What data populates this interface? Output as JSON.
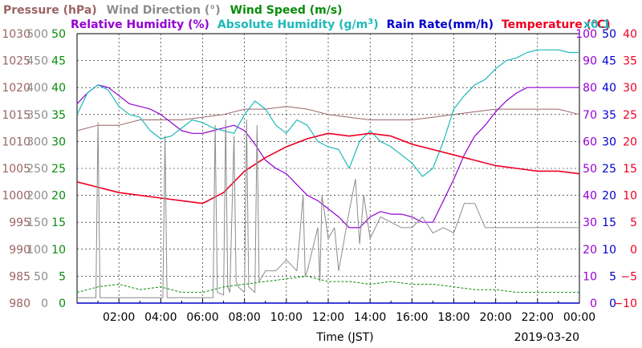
{
  "chart_data": {
    "type": "line",
    "date_label": "2019-03-20",
    "xlabel": "Time (JST)",
    "x_range_hours": [
      0,
      24
    ],
    "x_ticks": [
      "02:00",
      "04:00",
      "06:00",
      "08:00",
      "10:00",
      "12:00",
      "14:00",
      "16:00",
      "18:00",
      "20:00",
      "22:00",
      "00:00"
    ],
    "grid": true,
    "header_row1": [
      {
        "text": "Pressure (hPa)",
        "color": "#9b6464"
      },
      {
        "text": "Wind Direction (°)",
        "color": "#8c8c8c"
      },
      {
        "text": "Wind Speed (m/s)",
        "color": "#0a8c0a"
      }
    ],
    "header_row2": [
      {
        "text": "Relative Humidity (%)",
        "color": "#9400d3"
      },
      {
        "text": "Absolute Humidity (g/m",
        "color": "#1eb9b9",
        "sup": "3"
      },
      {
        "text": "Rain Rate(mm/h)",
        "color": "#0000cc"
      },
      {
        "text": "Temperature (°C)",
        "color": "#ee0022"
      }
    ],
    "abs_hum_scale_note": "x0.1",
    "axes": {
      "pressure": {
        "color": "#9b6464",
        "ticks": [
          "980",
          "985",
          "990",
          "995",
          "1000",
          "1005",
          "1010",
          "1015",
          "1020",
          "1025",
          "1030"
        ]
      },
      "wind_direction": {
        "color": "#8c8c8c",
        "ticks": [
          "0",
          "50",
          "100",
          "150",
          "200",
          "250",
          "300",
          "350",
          "400",
          "450",
          "500"
        ]
      },
      "wind_speed": {
        "color": "#0a8c0a",
        "ticks": [
          "0",
          "5",
          "10",
          "15",
          "20",
          "25",
          "30",
          "35",
          "40",
          "45",
          "50"
        ]
      },
      "relative_humidity": {
        "color": "#9400d3",
        "ticks": [
          "0",
          "10",
          "20",
          "30",
          "40",
          "50",
          "60",
          "70",
          "80",
          "90",
          "100"
        ]
      },
      "rain_rate": {
        "color": "#0000cc",
        "ticks": [
          "0",
          "5",
          "10",
          "15",
          "20",
          "25",
          "30",
          "35",
          "40",
          "45",
          "50"
        ]
      },
      "temperature": {
        "color": "#ee0022",
        "ticks": [
          "−10",
          "−5",
          "0",
          "5",
          "10",
          "15",
          "20",
          "25",
          "30",
          "35",
          "40"
        ]
      }
    },
    "series": [
      {
        "name": "Pressure (hPa)",
        "color": "#9b6464",
        "y_range": [
          980,
          1030
        ],
        "x": [
          0,
          1,
          2,
          3,
          4,
          5,
          6,
          7,
          8,
          9,
          10,
          11,
          12,
          13,
          14,
          15,
          16,
          17,
          18,
          19,
          20,
          21,
          22,
          23,
          24
        ],
        "y": [
          1012,
          1013,
          1013,
          1014,
          1014,
          1014,
          1014.5,
          1015,
          1016,
          1016,
          1016.5,
          1016,
          1015,
          1014.5,
          1014,
          1014,
          1014,
          1014.5,
          1015,
          1015.5,
          1016,
          1016,
          1016,
          1016,
          1015
        ]
      },
      {
        "name": "Relative Humidity (%)",
        "color": "#9400d3",
        "y_range": [
          0,
          100
        ],
        "x": [
          0,
          0.5,
          1,
          1.5,
          2,
          2.5,
          3,
          3.5,
          4,
          4.5,
          5,
          5.5,
          6,
          6.5,
          7,
          7.5,
          8,
          8.5,
          9,
          9.5,
          10,
          10.5,
          11,
          11.5,
          12,
          12.5,
          13,
          13.5,
          14,
          14.5,
          15,
          15.5,
          16,
          16.5,
          17,
          17.5,
          18,
          18.5,
          19,
          19.5,
          20,
          20.5,
          21,
          21.5,
          22,
          22.5,
          23,
          23.5,
          24
        ],
        "y": [
          74,
          78,
          81,
          80,
          77,
          74,
          73,
          72,
          70,
          67,
          64,
          63,
          63,
          64,
          65,
          66,
          64,
          59,
          53,
          50,
          48,
          44,
          40,
          38,
          35,
          32,
          28,
          28,
          32,
          34,
          33,
          33,
          32,
          30,
          30,
          38,
          46,
          55,
          62,
          66,
          71,
          75,
          78,
          80,
          80,
          80,
          80,
          80,
          80
        ]
      },
      {
        "name": "Absolute Humidity (g/m3)",
        "color": "#1eb9b9",
        "y_range": [
          0,
          50
        ],
        "x": [
          0,
          0.5,
          1,
          1.5,
          2,
          2.5,
          3,
          3.5,
          4,
          4.5,
          5,
          5.5,
          6,
          6.5,
          7,
          7.5,
          8,
          8.5,
          9,
          9.5,
          10,
          10.5,
          11,
          11.5,
          12,
          12.5,
          13,
          13.5,
          14,
          14.5,
          15,
          15.5,
          16,
          16.5,
          17,
          17.5,
          18,
          18.5,
          19,
          19.5,
          20,
          20.5,
          21,
          21.5,
          22,
          22.5,
          23,
          23.5,
          24
        ],
        "y": [
          35,
          39,
          40.5,
          39.5,
          36.5,
          35,
          34.5,
          32,
          30.5,
          31,
          32.5,
          34,
          33.5,
          32.5,
          32,
          31.5,
          35,
          37.5,
          36,
          33,
          31.5,
          34,
          33,
          30,
          29,
          28.5,
          25,
          30,
          32,
          30,
          29,
          27.5,
          26,
          23.5,
          25,
          30,
          36,
          38.5,
          40.5,
          41.5,
          43.5,
          45,
          45.5,
          46.5,
          47,
          47,
          47,
          46.5,
          46.5
        ]
      },
      {
        "name": "Temperature (°C)",
        "color": "#ee0022",
        "y_range": [
          -10,
          40
        ],
        "x": [
          0,
          1,
          2,
          3,
          4,
          5,
          6,
          7,
          8,
          9,
          10,
          11,
          12,
          13,
          14,
          15,
          16,
          17,
          18,
          19,
          20,
          21,
          22,
          23,
          24
        ],
        "y": [
          12.5,
          11.5,
          10.5,
          10,
          9.5,
          9,
          8.5,
          10.5,
          14.5,
          17,
          19,
          20.5,
          21.5,
          21,
          21.5,
          21,
          19.5,
          18.5,
          17.5,
          16.5,
          15.5,
          15,
          14.5,
          14.5,
          14
        ]
      },
      {
        "name": "Wind Direction (°)",
        "color": "#8c8c8c",
        "y_range": [
          0,
          500
        ],
        "x": [
          0,
          0.9,
          1,
          1.1,
          2,
          4.1,
          4.2,
          4.3,
          5,
          6.5,
          6.6,
          6.7,
          7,
          7.1,
          7.2,
          7.3,
          7.5,
          7.6,
          7.7,
          8,
          8.1,
          8.2,
          8.5,
          8.6,
          8.7,
          9,
          9.5,
          10,
          10.5,
          10.8,
          10.9,
          11,
          11.5,
          11.6,
          11.7,
          12,
          12.3,
          12.5,
          13,
          13.3,
          13.5,
          13.7,
          14,
          14.5,
          15,
          15.5,
          16,
          16.5,
          17,
          17.5,
          18,
          18.5,
          19,
          19.5,
          20,
          21,
          22,
          23,
          24
        ],
        "y": [
          10,
          10,
          335,
          10,
          10,
          10,
          310,
          10,
          10,
          10,
          330,
          20,
          15,
          340,
          30,
          20,
          310,
          40,
          30,
          20,
          340,
          30,
          20,
          330,
          40,
          60,
          60,
          80,
          60,
          200,
          50,
          60,
          140,
          40,
          200,
          120,
          140,
          60,
          170,
          230,
          110,
          200,
          120,
          160,
          150,
          140,
          140,
          160,
          130,
          140,
          130,
          185,
          185,
          140,
          140,
          140,
          140,
          140,
          140
        ]
      },
      {
        "name": "Wind Speed (m/s)",
        "color": "#0a8c0a",
        "y_range": [
          0,
          50
        ],
        "x": [
          0,
          1,
          2,
          3,
          4,
          5,
          6,
          7,
          8,
          9,
          10,
          11,
          12,
          13,
          14,
          15,
          16,
          17,
          18,
          19,
          20,
          21,
          22,
          23,
          24
        ],
        "y": [
          2,
          3,
          3.5,
          2.5,
          3,
          2,
          2,
          3,
          3.5,
          4,
          4.5,
          5,
          4,
          4,
          3.5,
          4,
          3.5,
          3.5,
          3,
          2.5,
          2.5,
          2,
          2,
          2,
          2
        ]
      }
    ]
  }
}
